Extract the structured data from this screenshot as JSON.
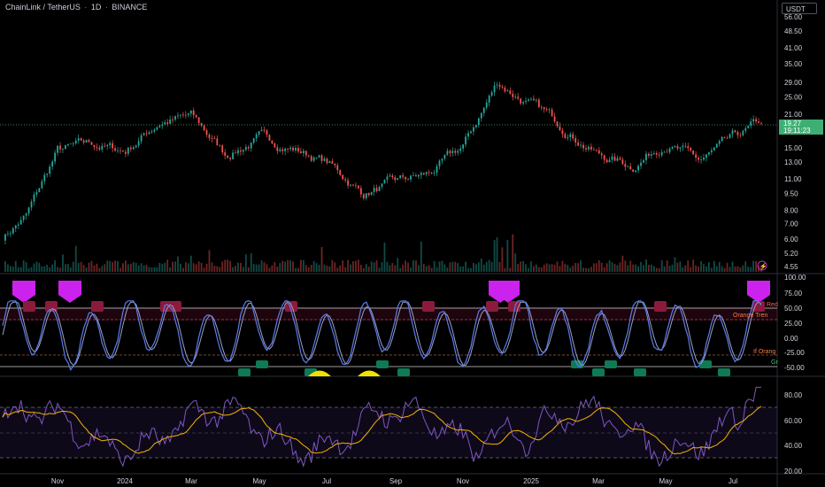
{
  "header": {
    "symbol": "ChainLink / TetherUS",
    "interval": "1D",
    "exchange": "BINANCE",
    "currency": "USDT"
  },
  "last_price": {
    "value": "19.27",
    "countdown": "19:11:23"
  },
  "colors": {
    "background": "#000000",
    "up": "#26a69a",
    "down": "#ef5350",
    "oscillator_line": "#5b7cf0",
    "rsi_line": "#7e57c2",
    "rsi_ma": "#f5b400",
    "red_marker": "#8b1a3c",
    "purple_marker": "#cc22ee",
    "green_marker": "#0e7a56",
    "yellow_marker": "#f0e000"
  },
  "price_axis": {
    "scale": "log",
    "ticks": [
      "56.00",
      "48.50",
      "41.00",
      "35.00",
      "29.00",
      "25.00",
      "21.00",
      "15.00",
      "13.00",
      "11.00",
      "9.50",
      "8.00",
      "7.00",
      "6.00",
      "5.20",
      "4.55"
    ]
  },
  "time_axis": {
    "labels": [
      "Nov",
      "2024",
      "Mar",
      "May",
      "Jul",
      "Sep",
      "Nov",
      "2025",
      "Mar",
      "May",
      "Jul"
    ]
  },
  "oscillator": {
    "ticks": [
      "100.00",
      "75.00",
      "50.00",
      "25.00",
      "0.00",
      "-25.00",
      "-50.00"
    ],
    "labels": [
      "Red",
      "Orange Tren",
      "If Orang",
      "Gr"
    ]
  },
  "rsi": {
    "ticks": [
      "80.00",
      "60.00",
      "40.00",
      "20.00"
    ]
  },
  "chart_data": {
    "type": "candlestick",
    "x_range": [
      "2023-09",
      "2025-07"
    ],
    "price_anchors": [
      {
        "t": "Sep 2023",
        "price": 6.0
      },
      {
        "t": "Oct 2023",
        "price": 7.6
      },
      {
        "t": "Nov 2023",
        "price": 14.5
      },
      {
        "t": "Dec 2023",
        "price": 15.5
      },
      {
        "t": "Jan 2024",
        "price": 14.5
      },
      {
        "t": "Feb 2024",
        "price": 19.5
      },
      {
        "t": "Mar 2024",
        "price": 20.5
      },
      {
        "t": "Apr 2024",
        "price": 14.0
      },
      {
        "t": "May 2024",
        "price": 16.5
      },
      {
        "t": "Jun 2024",
        "price": 15.0
      },
      {
        "t": "Jul 2024",
        "price": 13.0
      },
      {
        "t": "Aug 2024",
        "price": 9.5
      },
      {
        "t": "Sep 2024",
        "price": 10.5
      },
      {
        "t": "Oct 2024",
        "price": 11.5
      },
      {
        "t": "Nov 2024",
        "price": 15.0
      },
      {
        "t": "Dec 2024",
        "price": 29.0
      },
      {
        "t": "Jan 2025",
        "price": 23.0
      },
      {
        "t": "Feb 2025",
        "price": 18.5
      },
      {
        "t": "Mar 2025",
        "price": 14.0
      },
      {
        "t": "Apr 2025",
        "price": 12.5
      },
      {
        "t": "May 2025",
        "price": 16.0
      },
      {
        "t": "Jun 2025",
        "price": 13.0
      },
      {
        "t": "Jul 2025",
        "price": 19.27
      }
    ]
  }
}
